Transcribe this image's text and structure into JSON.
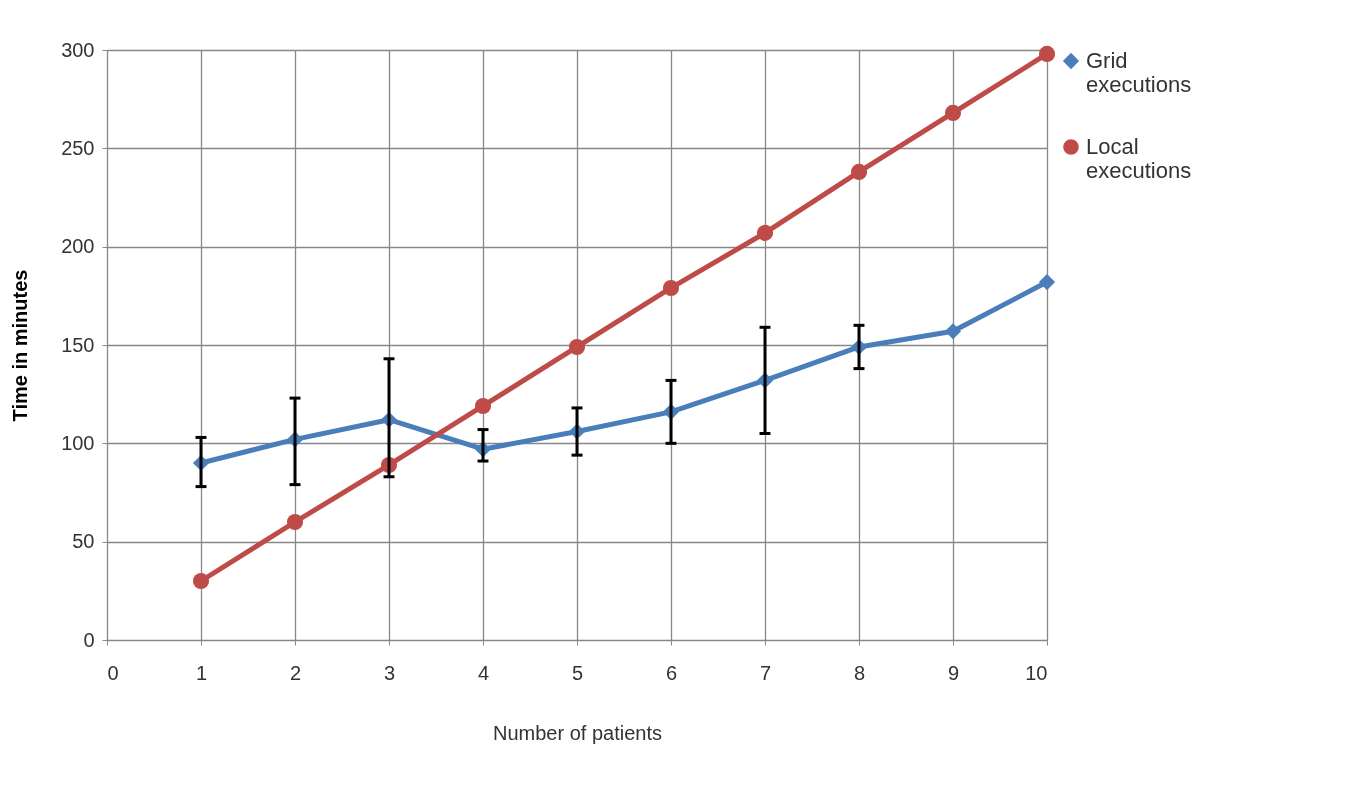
{
  "chart_data": {
    "type": "line",
    "xlabel": "Number of patients",
    "ylabel": "Time in minutes",
    "x": [
      1,
      2,
      3,
      4,
      5,
      6,
      7,
      8,
      9,
      10
    ],
    "series": [
      {
        "name": "Grid executions",
        "color": "#4a7ebb",
        "marker": "diamond",
        "values": [
          90,
          102,
          112,
          97,
          106,
          116,
          132,
          149,
          157,
          182
        ],
        "errors": [
          [
            78,
            103
          ],
          [
            79,
            123
          ],
          [
            83,
            143
          ],
          [
            91,
            107
          ],
          [
            94,
            118
          ],
          [
            100,
            132
          ],
          [
            105,
            159
          ],
          [
            138,
            160
          ],
          null,
          null
        ]
      },
      {
        "name": "Local executions",
        "color": "#be4b48",
        "marker": "circle",
        "values": [
          30,
          60,
          89,
          119,
          149,
          179,
          207,
          238,
          268,
          298
        ]
      }
    ],
    "xlim": [
      0,
      10
    ],
    "xticks": [
      0,
      1,
      2,
      3,
      4,
      5,
      6,
      7,
      8,
      9,
      10
    ],
    "ylim": [
      0,
      300
    ],
    "yticks": [
      0,
      50,
      100,
      150,
      200,
      250,
      300
    ],
    "grid": true,
    "legend": "right",
    "line_style": "solid"
  }
}
